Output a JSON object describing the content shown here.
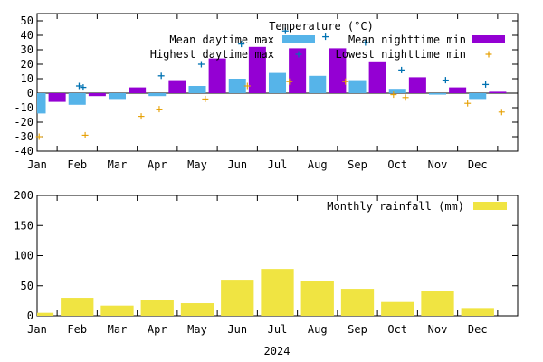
{
  "chart_data": [
    {
      "type": "bar",
      "title": "Temperature (°C)",
      "categories": [
        "Jan",
        "Feb",
        "Mar",
        "Apr",
        "May",
        "Jun",
        "Jul",
        "Aug",
        "Sep",
        "Oct",
        "Nov",
        "Dec"
      ],
      "ylim": [
        -40,
        55
      ],
      "yticks": [
        -40,
        -30,
        -20,
        -10,
        0,
        10,
        20,
        30,
        40,
        50
      ],
      "grid": false,
      "legend_position": "top-right",
      "series": [
        {
          "name": "Mean daytime max",
          "kind": "bar",
          "color": "#56b4e9",
          "values": [
            -14,
            -8,
            -4,
            -2,
            5,
            10,
            14,
            12,
            9,
            3,
            -1,
            -4
          ]
        },
        {
          "name": "Mean nighttime min",
          "kind": "bar",
          "color": "#9400d3",
          "values": [
            -6,
            -2,
            4,
            9,
            24,
            32,
            31,
            31,
            22,
            11,
            4,
            1
          ]
        },
        {
          "name": "Highest daytime max",
          "kind": "marker",
          "marker": "x",
          "color": "#0072b2",
          "points": [
            [
              1.05,
              5
            ],
            [
              1.15,
              4
            ],
            [
              3.1,
              12
            ],
            [
              4.1,
              20
            ],
            [
              5.1,
              34
            ],
            [
              6.2,
              43
            ],
            [
              7.2,
              39
            ],
            [
              8.2,
              35
            ],
            [
              9.1,
              16
            ],
            [
              10.2,
              9
            ],
            [
              11.2,
              6
            ]
          ]
        },
        {
          "name": "Lowest nighttime min",
          "kind": "marker",
          "marker": "plus",
          "color": "#e69f00",
          "points": [
            [
              0.05,
              -30
            ],
            [
              1.2,
              -29
            ],
            [
              2.6,
              -16
            ],
            [
              3.05,
              -11
            ],
            [
              4.2,
              -4
            ],
            [
              5.25,
              5
            ],
            [
              6.3,
              8
            ],
            [
              7.7,
              8
            ],
            [
              8.9,
              -1
            ],
            [
              9.2,
              -3
            ],
            [
              10.75,
              -7
            ],
            [
              11.6,
              -13
            ]
          ]
        }
      ]
    },
    {
      "type": "bar",
      "categories": [
        "Jan",
        "Feb",
        "Mar",
        "Apr",
        "May",
        "Jun",
        "Jul",
        "Aug",
        "Sep",
        "Oct",
        "Nov",
        "Dec"
      ],
      "xlabel": "2024",
      "ylim": [
        0,
        200
      ],
      "yticks": [
        0,
        50,
        100,
        150,
        200
      ],
      "grid": false,
      "legend_position": "top-right",
      "series": [
        {
          "name": "Monthly rainfall (mm)",
          "kind": "bar",
          "color": "#f0e442",
          "values": [
            5,
            30,
            17,
            27,
            21,
            60,
            78,
            58,
            45,
            23,
            41,
            13
          ]
        }
      ]
    }
  ]
}
